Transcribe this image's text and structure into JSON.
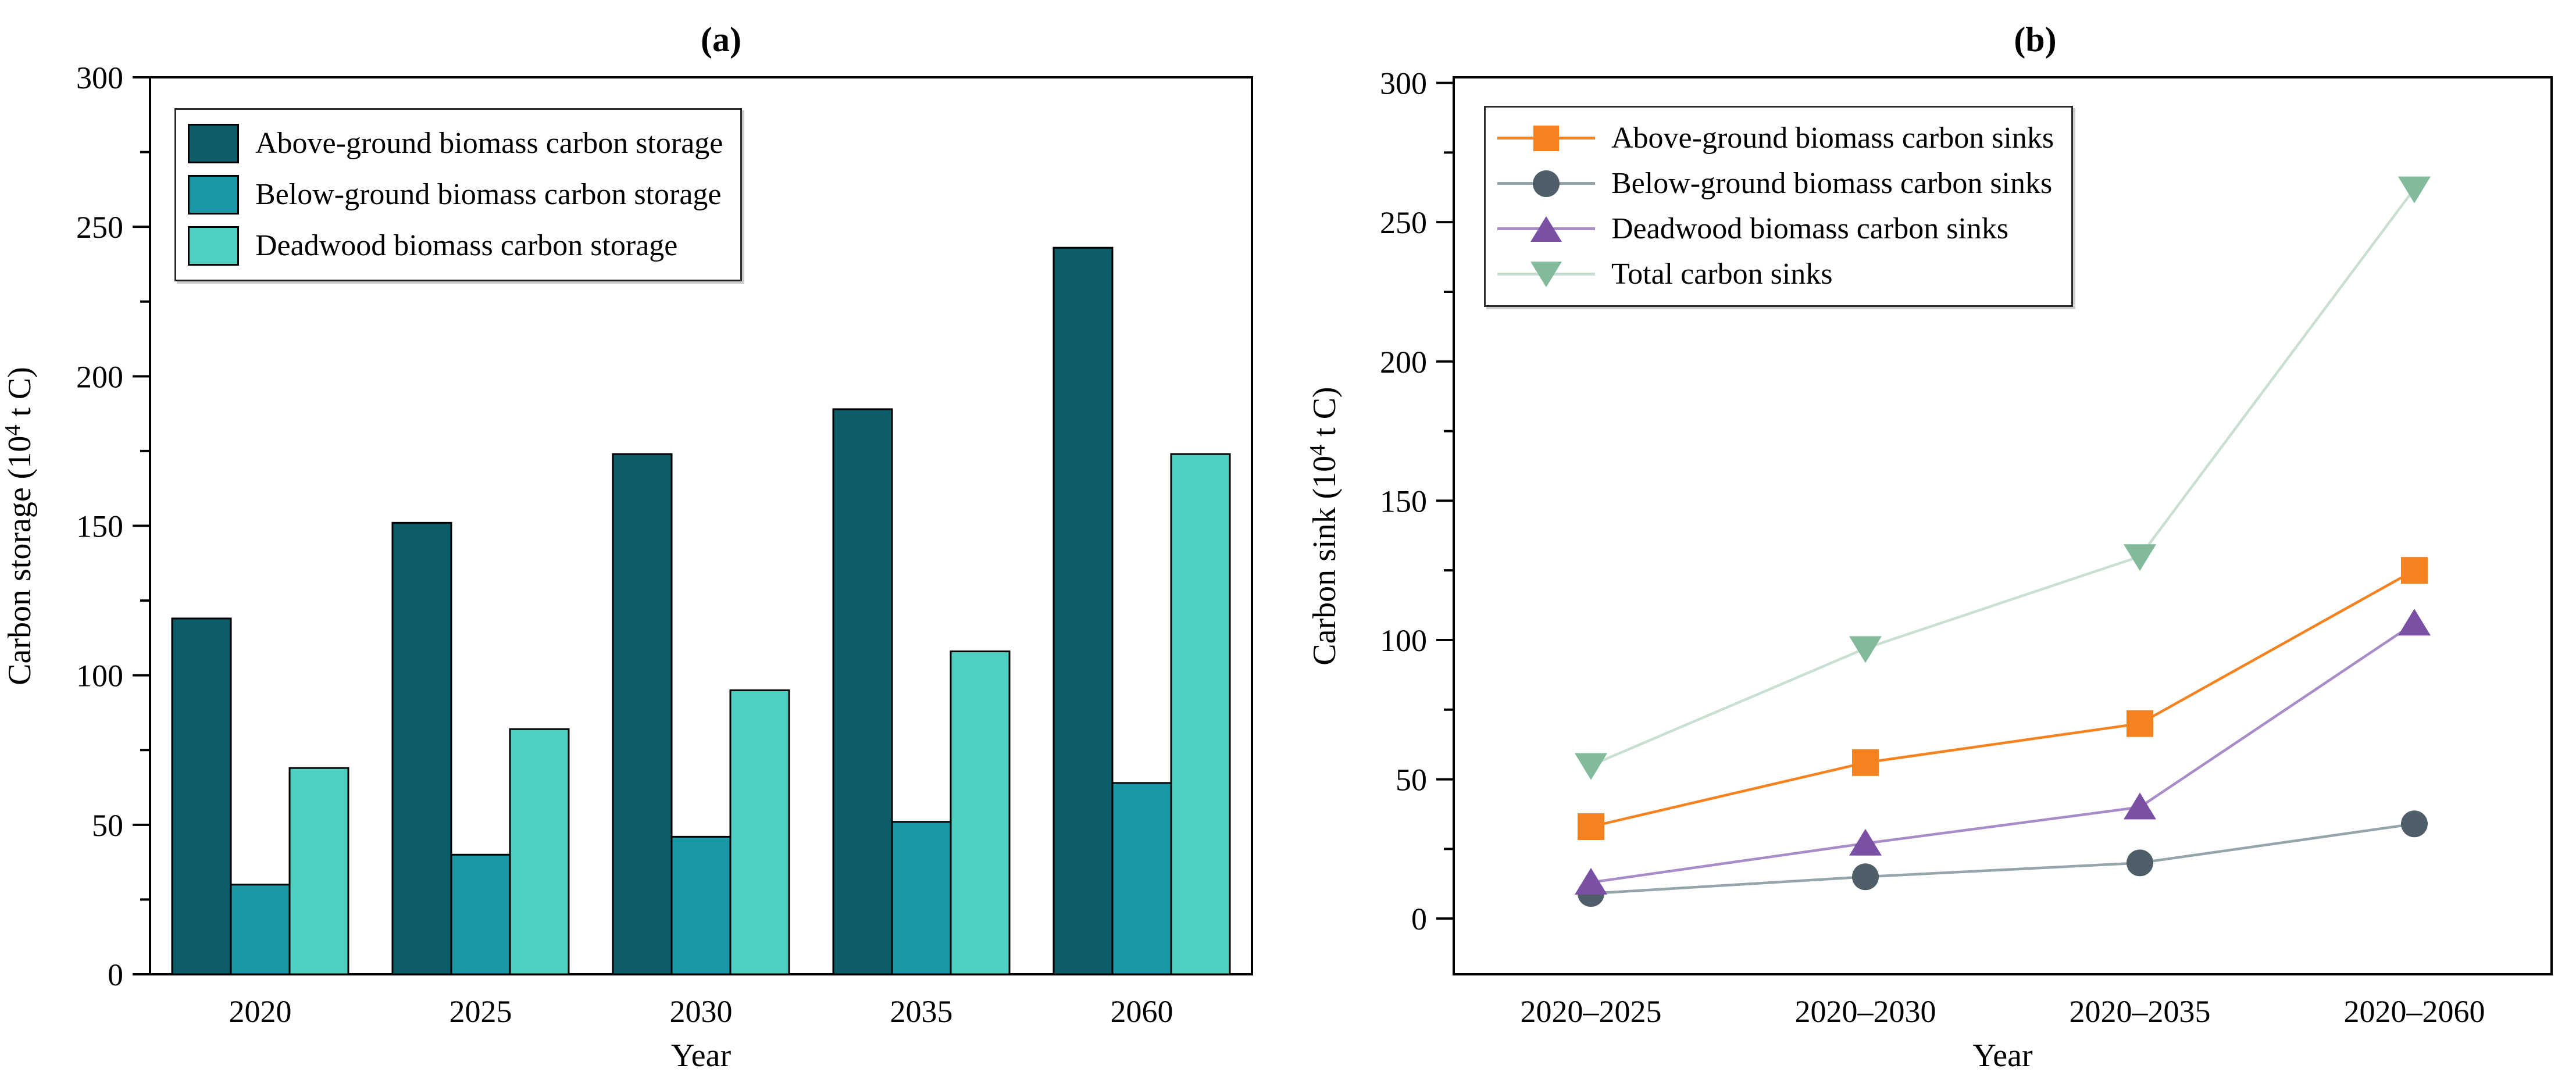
{
  "figure": {
    "background": "#ffffff",
    "axis_color": "#000000"
  },
  "chart_data": [
    {
      "type": "bar",
      "title": "(a)",
      "xlabel": "Year",
      "ylabel": "Carbon storage (10^4 t C)",
      "ylabel_parts": {
        "prefix": "Carbon storage (10",
        "sup": "4",
        "suffix": " t C)"
      },
      "categories": [
        "2020",
        "2025",
        "2030",
        "2035",
        "2060"
      ],
      "series": [
        {
          "name": "Above-ground biomass carbon storage",
          "color": "#0d5c69",
          "values": [
            119,
            151,
            174,
            189,
            243
          ]
        },
        {
          "name": "Below-ground biomass carbon storage",
          "color": "#1b98a6",
          "values": [
            30,
            40,
            46,
            51,
            64
          ]
        },
        {
          "name": "Deadwood biomass carbon storage",
          "color": "#4ecfc1",
          "values": [
            69,
            82,
            95,
            108,
            174
          ]
        }
      ],
      "ylim": [
        0,
        300
      ],
      "ytick_step": 50,
      "yminor_step": 25,
      "bar_edge_color": "#000000",
      "grid": false,
      "legend_position": "upper-left"
    },
    {
      "type": "line",
      "title": "(b)",
      "xlabel": "Year",
      "ylabel": "Carbon sink (10^4 t C)",
      "ylabel_parts": {
        "prefix": "Carbon sink (10",
        "sup": "4",
        "suffix": " t C)"
      },
      "categories": [
        "2020–2025",
        "2020–2030",
        "2020–2035",
        "2020–2060"
      ],
      "series": [
        {
          "name": "Above-ground biomass carbon sinks",
          "marker": "square",
          "color": "#f5821f",
          "line_color": "#f5821f",
          "values": [
            33,
            56,
            70,
            125
          ]
        },
        {
          "name": "Below-ground biomass carbon sinks",
          "marker": "circle",
          "color": "#4e5f69",
          "line_color": "#94a5ab",
          "values": [
            9,
            15,
            20,
            34
          ]
        },
        {
          "name": "Deadwood biomass carbon sinks",
          "marker": "triangle-up",
          "color": "#7a50a5",
          "line_color": "#a78cc8",
          "values": [
            13,
            27,
            40,
            106
          ]
        },
        {
          "name": "Total carbon sinks",
          "marker": "triangle-down",
          "color": "#83ba9b",
          "line_color": "#c9dfd2",
          "values": [
            55,
            97,
            130,
            262
          ]
        }
      ],
      "ylim": [
        -20,
        302
      ],
      "ytick_step": 50,
      "yminor_step": 25,
      "grid": false,
      "legend_position": "upper-left"
    }
  ]
}
